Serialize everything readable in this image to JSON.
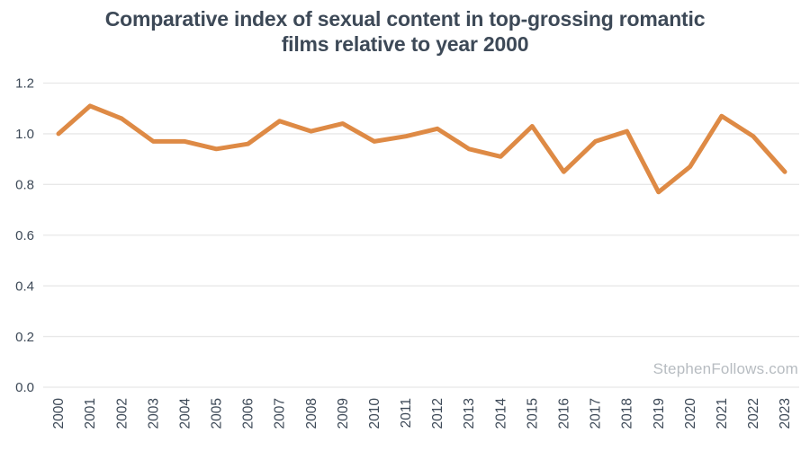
{
  "title": {
    "line1": "Comparative index of sexual content in top-grossing romantic",
    "line2": "films relative to year 2000"
  },
  "watermark": "StephenFollows.com",
  "colors": {
    "line": "#de8a45",
    "text": "#3d4957",
    "grid": "#e8e8e8",
    "watermark": "#b7bcc1",
    "background": "#ffffff"
  },
  "chart_data": {
    "type": "line",
    "title": "Comparative index of sexual content in top-grossing romantic films relative to year 2000",
    "x": [
      2000,
      2001,
      2002,
      2003,
      2004,
      2005,
      2006,
      2007,
      2008,
      2009,
      2010,
      2011,
      2012,
      2013,
      2014,
      2015,
      2016,
      2017,
      2018,
      2019,
      2020,
      2021,
      2022,
      2023
    ],
    "values": [
      1.0,
      1.11,
      1.06,
      0.97,
      0.97,
      0.94,
      0.96,
      1.05,
      1.01,
      1.04,
      0.97,
      0.99,
      1.02,
      0.94,
      0.91,
      1.03,
      0.85,
      0.97,
      1.01,
      0.77,
      0.87,
      1.07,
      0.99,
      0.85
    ],
    "xlabel": "",
    "ylabel": "",
    "ylim": [
      0.0,
      1.2
    ],
    "yticks": [
      0.0,
      0.2,
      0.4,
      0.6,
      0.8,
      1.0,
      1.2
    ],
    "grid": "horizontal",
    "legend": "none"
  }
}
